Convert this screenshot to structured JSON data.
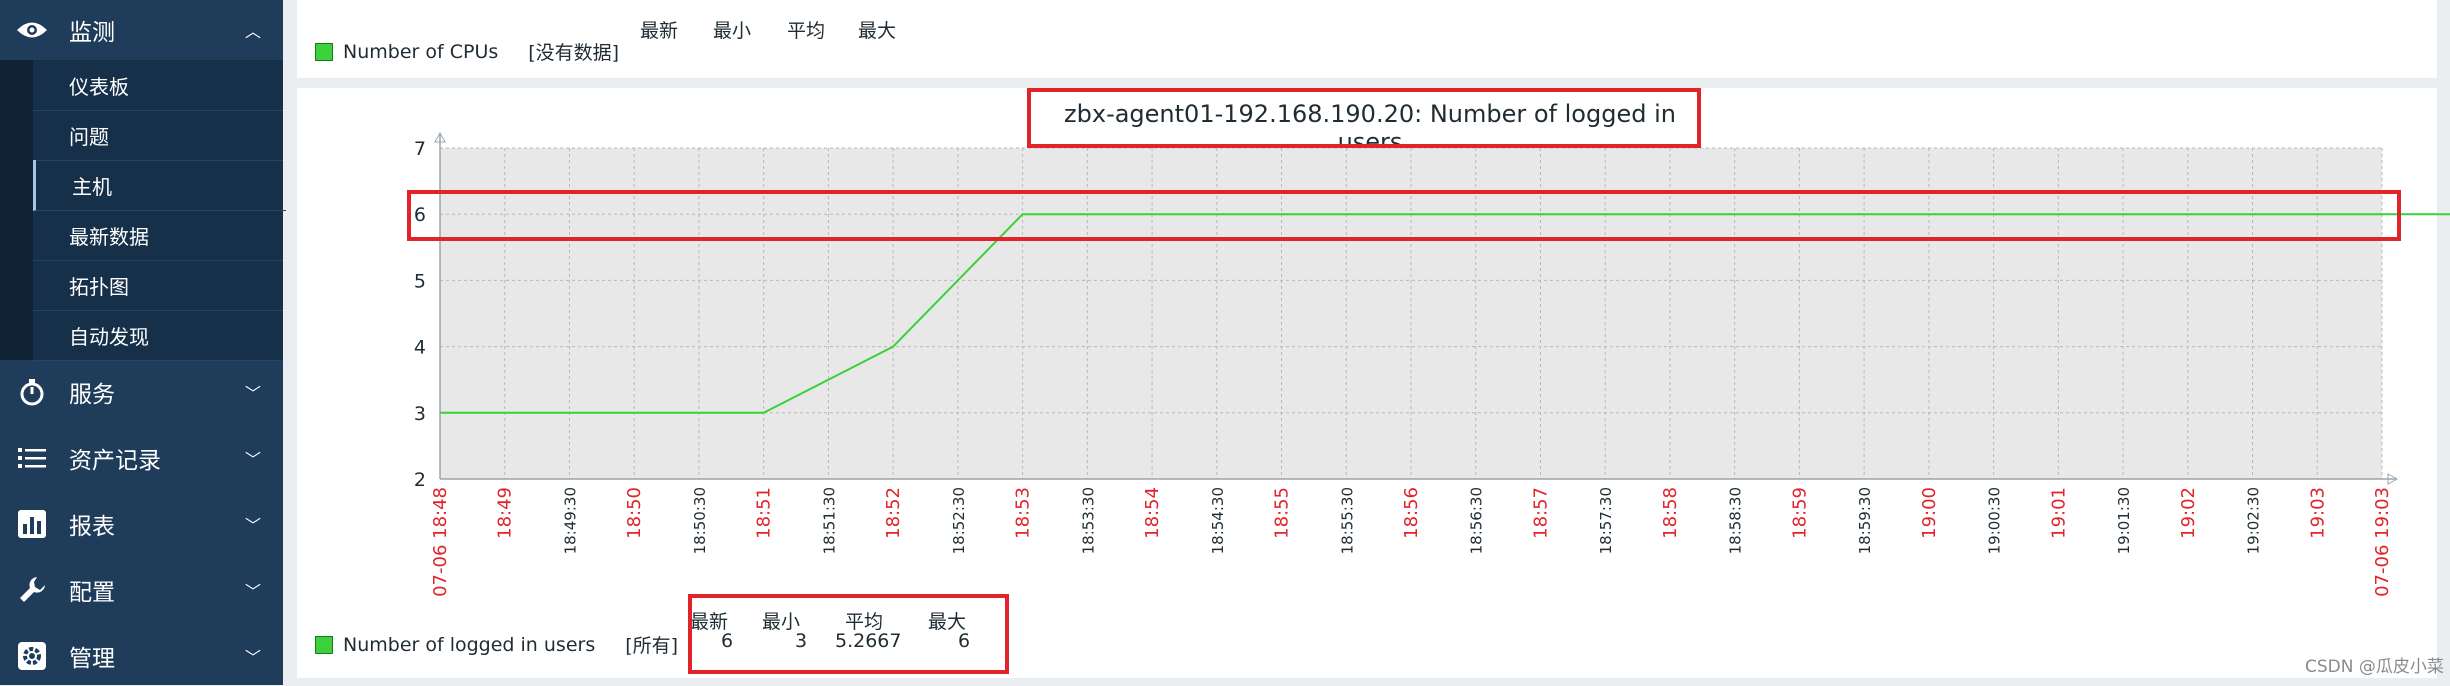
{
  "sidebar": {
    "monitoring": {
      "label": "监测",
      "icon": "eye-icon"
    },
    "submenu": [
      "仪表板",
      "问题",
      "主机",
      "最新数据",
      "拓扑图",
      "自动发现"
    ],
    "active_index": 2,
    "sections": [
      {
        "label": "服务",
        "icon": "stopwatch-icon"
      },
      {
        "label": "资产记录",
        "icon": "list-icon"
      },
      {
        "label": "报表",
        "icon": "bar-chart-icon"
      },
      {
        "label": "配置",
        "icon": "wrench-icon"
      },
      {
        "label": "管理",
        "icon": "gear-icon"
      }
    ]
  },
  "top_graph": {
    "legend_name": "Number of CPUs",
    "legend_status": "[没有数据]",
    "headers": [
      "最新",
      "最小",
      "平均",
      "最大"
    ]
  },
  "chart": {
    "title": "zbx-agent01-192.168.190.20: Number of logged in users",
    "legend_name": "Number of logged in users",
    "legend_scope": "[所有]",
    "stat_headers": [
      "最新",
      "最小",
      "平均",
      "最大"
    ],
    "stat_values": [
      "6",
      "3",
      "5.2667",
      "6"
    ]
  },
  "chart_data": {
    "type": "line",
    "title": "zbx-agent01-192.168.190.20: Number of logged in users",
    "ylim": [
      2,
      7
    ],
    "y_ticks": [
      2,
      3,
      4,
      5,
      6,
      7
    ],
    "x_range": [
      "18:48",
      "19:03"
    ],
    "x_ticks": [
      "07-06 18:48",
      "18:49",
      "18:49:30",
      "18:50",
      "18:50:30",
      "18:51",
      "18:51:30",
      "18:52",
      "18:52:30",
      "18:53",
      "18:53:30",
      "18:54",
      "18:54:30",
      "18:55",
      "18:55:30",
      "18:56",
      "18:56:30",
      "18:57",
      "18:57:30",
      "18:58",
      "18:58:30",
      "18:59",
      "18:59:30",
      "19:00",
      "19:00:30",
      "19:01",
      "19:01:30",
      "19:02",
      "19:02:30",
      "19:03",
      "07-06 19:03"
    ],
    "grid": true,
    "series": [
      {
        "name": "Number of logged in users",
        "color": "#3ad13a",
        "x": [
          0,
          2.5,
          3.5,
          4.5,
          18
        ],
        "x_labels": [
          "18:48",
          "18:50:30",
          "18:51:30",
          "18:52:30",
          "19:03"
        ],
        "y": [
          3,
          3,
          4,
          6,
          6
        ]
      }
    ]
  },
  "watermark": "CSDN @瓜皮小菜",
  "colors": {
    "sidebar": "#1f3c5a",
    "submenu": "#163049",
    "highlight": "#e0242a",
    "series": "#3ad13a",
    "tick_red": "#e0242a"
  }
}
